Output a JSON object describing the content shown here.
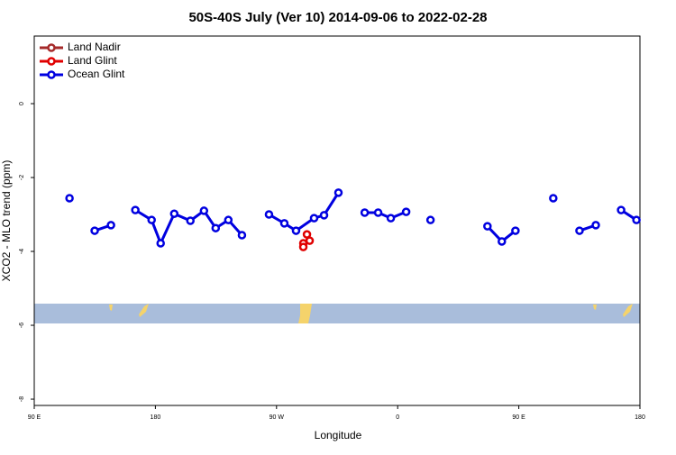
{
  "chart_data": {
    "type": "line",
    "title": "50S-40S July (Ver 10)   2014-09-06 to 2022-02-28",
    "x_label": "Longitude",
    "y_label": "XCO2 - MLO trend (ppm)",
    "xlim": [
      90,
      540
    ],
    "xticks": [
      {
        "value": 90,
        "label": "90 E"
      },
      {
        "value": 180,
        "label": "180"
      },
      {
        "value": 270,
        "label": "90 W"
      },
      {
        "value": 360,
        "label": "0"
      },
      {
        "value": 450,
        "label": "90 E"
      },
      {
        "value": 540,
        "label": "180"
      }
    ],
    "ylim": [
      -8.17,
      1.83
    ],
    "yticks": [
      0,
      -2,
      -4,
      -6,
      -8
    ],
    "legend": "top-left",
    "series": [
      {
        "name": "Land Nadir",
        "color": "#a52a2a",
        "x": [],
        "values": []
      },
      {
        "name": "Land Glint",
        "color": "#e00000",
        "x": [
          292.6,
          294.6,
          289.9,
          289.9
        ],
        "values": [
          -3.54,
          -3.71,
          -3.78,
          -3.88
        ]
      },
      {
        "name": "Ocean Glint",
        "color": "#0000e0",
        "x": [
          116.2,
          null,
          134.9,
          147.0,
          null,
          165.1,
          177.2,
          183.9,
          194.0,
          206.0,
          216.1,
          224.8,
          234.2,
          244.3,
          null,
          264.4,
          275.8,
          284.5,
          297.9,
          305.3,
          316.0,
          null,
          335.5,
          345.5,
          354.9,
          366.3,
          null,
          384.4,
          null,
          426.7,
          437.4,
          447.5,
          null,
          475.6,
          null,
          495.1,
          507.2,
          null,
          526.0,
          537.4
        ],
        "values": [
          -2.56,
          null,
          -3.44,
          -3.29,
          null,
          -2.88,
          -3.15,
          -3.78,
          -2.98,
          -3.17,
          -2.9,
          -3.37,
          -3.15,
          -3.56,
          null,
          -3.0,
          -3.24,
          -3.44,
          -3.1,
          -3.02,
          -2.41,
          null,
          -2.95,
          -2.95,
          -3.1,
          -2.93,
          null,
          -3.15,
          null,
          -3.32,
          -3.73,
          -3.44,
          null,
          -2.56,
          null,
          -3.44,
          -3.29,
          null,
          -2.88,
          -3.15
        ]
      }
    ]
  }
}
